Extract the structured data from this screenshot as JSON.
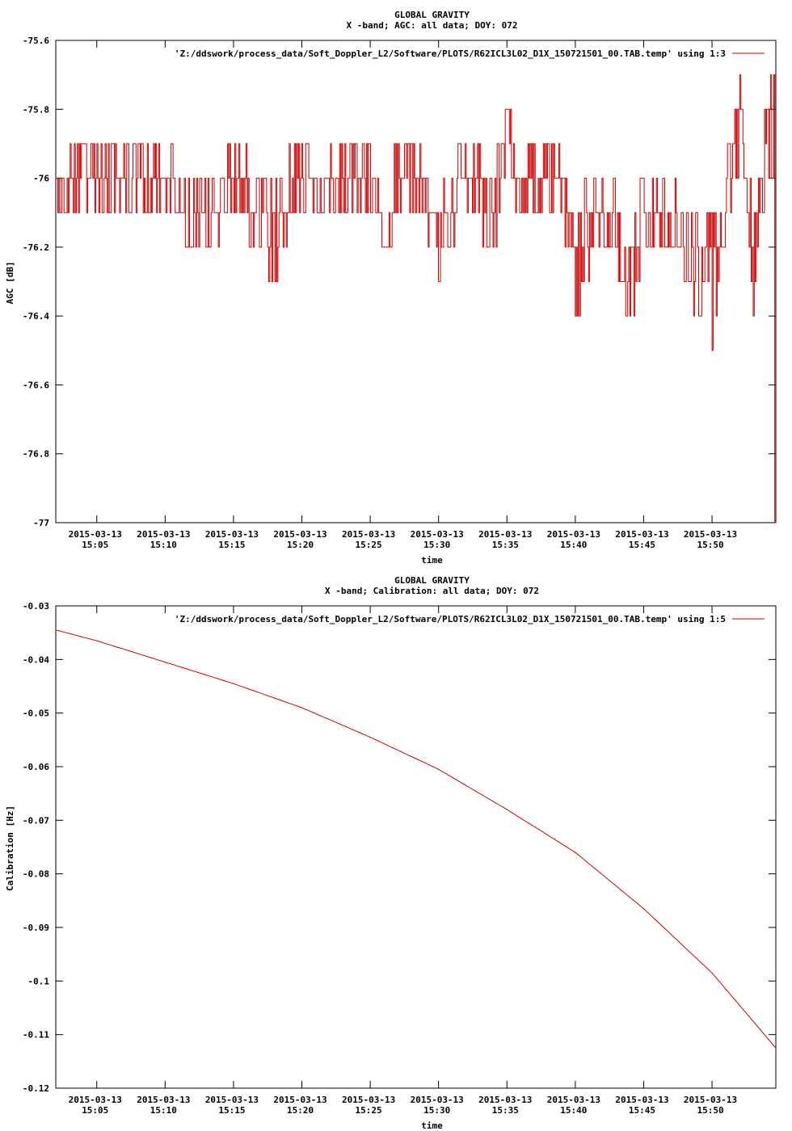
{
  "colors": {
    "series": "#cc0000",
    "axes": "#000000",
    "background": "#ffffff"
  },
  "chart_data": [
    {
      "type": "line",
      "title": "GLOBAL GRAVITY",
      "subtitle": "X -band; AGC: all data; DOY: 072",
      "xlabel": "time",
      "ylabel": "AGC [dB]",
      "legend": "'Z:/ddswork/process_data/Soft_Doppler_L2/Software/PLOTS/R62ICL3L02_D1X_150721501_00.TAB.temp' using 1:3",
      "legend_position": "top-right",
      "grid": false,
      "xlim": [
        "2015-03-13 15:02:00",
        "2015-03-13 15:54:40"
      ],
      "ylim": [
        -77,
        -75.6
      ],
      "y_ticks": [
        -75.6,
        -75.8,
        -76,
        -76.2,
        -76.4,
        -76.6,
        -76.8,
        -77
      ],
      "y_tick_labels": [
        "-75.6",
        "-75.8",
        "-76",
        "-76.2",
        "-76.4",
        "-76.6",
        "-76.8",
        "-77"
      ],
      "x_ticks": [
        "2015-03-13 15:05",
        "2015-03-13 15:10",
        "2015-03-13 15:15",
        "2015-03-13 15:20",
        "2015-03-13 15:25",
        "2015-03-13 15:30",
        "2015-03-13 15:35",
        "2015-03-13 15:40",
        "2015-03-13 15:45",
        "2015-03-13 15:50"
      ],
      "x_tick_labels": [
        [
          "2015-03-13",
          "15:05"
        ],
        [
          "2015-03-13",
          "15:10"
        ],
        [
          "2015-03-13",
          "15:15"
        ],
        [
          "2015-03-13",
          "15:20"
        ],
        [
          "2015-03-13",
          "15:25"
        ],
        [
          "2015-03-13",
          "15:30"
        ],
        [
          "2015-03-13",
          "15:35"
        ],
        [
          "2015-03-13",
          "15:40"
        ],
        [
          "2015-03-13",
          "15:45"
        ],
        [
          "2015-03-13",
          "15:50"
        ]
      ],
      "series": [
        {
          "x": [
            "2015-03-13 15:02",
            "2015-03-13 15:04",
            "2015-03-13 15:06",
            "2015-03-13 15:08",
            "2015-03-13 15:10",
            "2015-03-13 15:12",
            "2015-03-13 15:14",
            "2015-03-13 15:16",
            "2015-03-13 15:18",
            "2015-03-13 15:20",
            "2015-03-13 15:22",
            "2015-03-13 15:24",
            "2015-03-13 15:26",
            "2015-03-13 15:28",
            "2015-03-13 15:30",
            "2015-03-13 15:32",
            "2015-03-13 15:34",
            "2015-03-13 15:35",
            "2015-03-13 15:36",
            "2015-03-13 15:38",
            "2015-03-13 15:40",
            "2015-03-13 15:42",
            "2015-03-13 15:44",
            "2015-03-13 15:46",
            "2015-03-13 15:48",
            "2015-03-13 15:49",
            "2015-03-13 15:50",
            "2015-03-13 15:52",
            "2015-03-13 15:53",
            "2015-03-13 15:54",
            "2015-03-13 15:54:30",
            "2015-03-13 15:54:40"
          ],
          "y": [
            -76.0,
            -75.9,
            -76.1,
            -75.9,
            -76.0,
            -76.2,
            -76.1,
            -76.1,
            -76.3,
            -75.9,
            -76.1,
            -75.9,
            -76.2,
            -75.9,
            -76.3,
            -76.0,
            -76.2,
            -75.8,
            -76.1,
            -75.9,
            -76.4,
            -76.1,
            -76.4,
            -76.1,
            -76.3,
            -76.4,
            -76.5,
            -75.7,
            -76.4,
            -75.8,
            -75.7,
            -77.0
          ]
        }
      ]
    },
    {
      "type": "line",
      "title": "GLOBAL GRAVITY",
      "subtitle": "X -band; Calibration: all data; DOY: 072",
      "xlabel": "time",
      "ylabel": "Calibration [Hz]",
      "legend": "'Z:/ddswork/process_data/Soft_Doppler_L2/Software/PLOTS/R62ICL3L02_D1X_150721501_00.TAB.temp' using 1:5",
      "legend_position": "top-right",
      "grid": false,
      "xlim": [
        "2015-03-13 15:02:00",
        "2015-03-13 15:54:40"
      ],
      "ylim": [
        -0.12,
        -0.03
      ],
      "y_ticks": [
        -0.03,
        -0.04,
        -0.05,
        -0.06,
        -0.07,
        -0.08,
        -0.09,
        -0.1,
        -0.11,
        -0.12
      ],
      "y_tick_labels": [
        "-0.03",
        "-0.04",
        "-0.05",
        "-0.06",
        "-0.07",
        "-0.08",
        "-0.09",
        "-0.1",
        "-0.11",
        "-0.12"
      ],
      "x_ticks": [
        "2015-03-13 15:05",
        "2015-03-13 15:10",
        "2015-03-13 15:15",
        "2015-03-13 15:20",
        "2015-03-13 15:25",
        "2015-03-13 15:30",
        "2015-03-13 15:35",
        "2015-03-13 15:40",
        "2015-03-13 15:45",
        "2015-03-13 15:50"
      ],
      "x_tick_labels": [
        [
          "2015-03-13",
          "15:05"
        ],
        [
          "2015-03-13",
          "15:10"
        ],
        [
          "2015-03-13",
          "15:15"
        ],
        [
          "2015-03-13",
          "15:20"
        ],
        [
          "2015-03-13",
          "15:25"
        ],
        [
          "2015-03-13",
          "15:30"
        ],
        [
          "2015-03-13",
          "15:35"
        ],
        [
          "2015-03-13",
          "15:40"
        ],
        [
          "2015-03-13",
          "15:45"
        ],
        [
          "2015-03-13",
          "15:50"
        ]
      ],
      "series": [
        {
          "x": [
            "2015-03-13 15:02",
            "2015-03-13 15:05",
            "2015-03-13 15:10",
            "2015-03-13 15:15",
            "2015-03-13 15:20",
            "2015-03-13 15:25",
            "2015-03-13 15:30",
            "2015-03-13 15:35",
            "2015-03-13 15:40",
            "2015-03-13 15:45",
            "2015-03-13 15:50",
            "2015-03-13 15:54:40"
          ],
          "y": [
            -0.0345,
            -0.0365,
            -0.0405,
            -0.0445,
            -0.049,
            -0.0545,
            -0.0605,
            -0.068,
            -0.076,
            -0.0865,
            -0.0985,
            -0.1125
          ]
        }
      ]
    }
  ]
}
